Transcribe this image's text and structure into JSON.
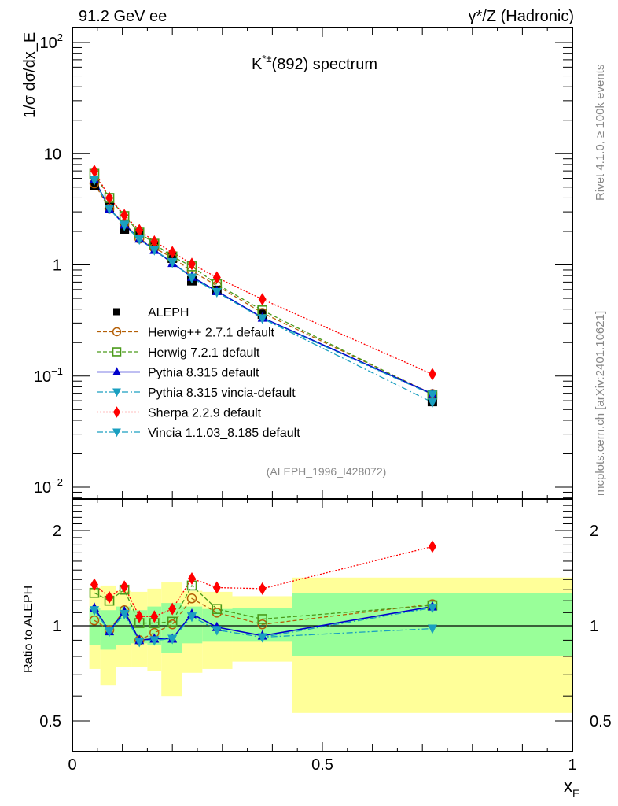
{
  "header": {
    "left": "91.2 GeV ee",
    "right": "γ*/Z (Hadronic)",
    "side_top": "Rivet 4.1.0, ≥ 100k events",
    "side_bottom": "mcplots.cern.ch [arXiv:2401.10621]",
    "analysis_id": "(ALEPH_1996_I428072)"
  },
  "chart_data": [
    {
      "type": "line",
      "panel": "main",
      "title": "K*±(892) spectrum",
      "title_base": "K",
      "title_sup": "*±",
      "title_rest": "(892) spectrum",
      "ylabel": "1/σ  dσ/dx_E",
      "yscale": "log",
      "ylim": [
        0.008,
        130
      ],
      "xlim": [
        0,
        1
      ],
      "yticks": [
        {
          "value": 100,
          "base": "10",
          "exp": "2"
        },
        {
          "value": 10,
          "base": "10",
          "exp": ""
        },
        {
          "value": 1,
          "base": "1",
          "exp": ""
        },
        {
          "value": 0.1,
          "base": "10",
          "exp": "−1"
        },
        {
          "value": 0.01,
          "base": "10",
          "exp": "−2"
        }
      ],
      "legend_position": "center-left",
      "x": [
        0.044,
        0.074,
        0.104,
        0.134,
        0.164,
        0.2,
        0.239,
        0.289,
        0.38,
        0.72
      ],
      "series": [
        {
          "name": "ALEPH",
          "color": "#000000",
          "marker": "square-filled",
          "line": "none",
          "values": [
            5.2,
            3.3,
            2.1,
            1.9,
            1.5,
            1.15,
            0.72,
            0.59,
            0.36,
            0.059
          ]
        },
        {
          "name": "Herwig++ 2.7.1 default",
          "color": "#b45f06",
          "marker": "circle-open",
          "line": "dashed",
          "values": [
            5.4,
            3.2,
            2.35,
            1.72,
            1.42,
            1.16,
            0.88,
            0.65,
            0.37,
            0.069
          ]
        },
        {
          "name": "Herwig 7.2.1 default",
          "color": "#4a9a1a",
          "marker": "square-open",
          "line": "dashed",
          "values": [
            6.6,
            4.0,
            2.75,
            1.95,
            1.55,
            1.19,
            0.97,
            0.67,
            0.39,
            0.068
          ]
        },
        {
          "name": "Pythia 8.315 default",
          "color": "#0000cc",
          "marker": "triangle-up",
          "line": "solid",
          "values": [
            5.9,
            3.2,
            2.3,
            1.72,
            1.36,
            1.04,
            0.78,
            0.58,
            0.335,
            0.069
          ]
        },
        {
          "name": "Pythia 8.315 vincia-default",
          "color": "#1a9fc0",
          "marker": "triangle-down",
          "line": "dashdot",
          "values": [
            5.8,
            3.2,
            2.25,
            1.7,
            1.36,
            1.06,
            0.76,
            0.57,
            0.33,
            0.058
          ]
        },
        {
          "name": "Sherpa 2.2.9 default",
          "color": "#ff0000",
          "marker": "diamond",
          "line": "dotted",
          "values": [
            7.0,
            4.0,
            2.8,
            2.05,
            1.62,
            1.3,
            1.02,
            0.77,
            0.49,
            0.104
          ]
        },
        {
          "name": "Vincia 1.1.03_8.185 default",
          "color": "#1a9fc0",
          "marker": "triangle-down",
          "line": "dashdot",
          "values": [
            5.8,
            3.2,
            2.3,
            1.7,
            1.36,
            1.05,
            0.77,
            0.57,
            0.33,
            0.068
          ]
        }
      ]
    },
    {
      "type": "line",
      "panel": "ratio",
      "ylabel": "Ratio to ALEPH",
      "xlabel": "x_E",
      "xlabel_base": "x",
      "xlabel_sub": "E",
      "yscale": "log",
      "ylim": [
        0.42,
        2.6
      ],
      "xlim": [
        0,
        1
      ],
      "yticks": [
        {
          "value": 2,
          "label": "2"
        },
        {
          "value": 1,
          "label": "1"
        },
        {
          "value": 0.5,
          "label": "0.5"
        }
      ],
      "xticks": [
        {
          "value": 0,
          "label": "0"
        },
        {
          "value": 0.5,
          "label": "0.5"
        },
        {
          "value": 1,
          "label": "1"
        }
      ],
      "reference_line": 1,
      "bands": {
        "bin_edges": [
          0.034,
          0.056,
          0.088,
          0.118,
          0.15,
          0.178,
          0.22,
          0.26,
          0.32,
          0.44,
          1.0
        ],
        "stat_color": "#99ff99",
        "total_color": "#ffff99",
        "stat": [
          [
            0.87,
            1.14
          ],
          [
            0.84,
            1.12
          ],
          [
            0.87,
            1.15
          ],
          [
            0.88,
            1.12
          ],
          [
            0.87,
            1.15
          ],
          [
            0.82,
            1.18
          ],
          [
            0.88,
            1.15
          ],
          [
            0.89,
            1.13
          ],
          [
            0.89,
            1.14
          ],
          [
            0.8,
            1.27
          ]
        ],
        "total": [
          [
            0.73,
            1.32
          ],
          [
            0.65,
            1.34
          ],
          [
            0.74,
            1.29
          ],
          [
            0.74,
            1.28
          ],
          [
            0.72,
            1.31
          ],
          [
            0.6,
            1.37
          ],
          [
            0.71,
            1.29
          ],
          [
            0.73,
            1.28
          ],
          [
            0.77,
            1.24
          ],
          [
            0.53,
            1.42
          ]
        ]
      },
      "x": [
        0.044,
        0.074,
        0.104,
        0.134,
        0.164,
        0.2,
        0.239,
        0.289,
        0.38,
        0.72
      ],
      "series": [
        {
          "name": "Herwig++ 2.7.1 default",
          "color": "#b45f06",
          "marker": "circle-open",
          "line": "dashed",
          "values": [
            1.04,
            0.97,
            1.12,
            0.9,
            0.95,
            1.01,
            1.22,
            1.1,
            1.01,
            1.17
          ]
        },
        {
          "name": "Herwig 7.2.1 default",
          "color": "#4a9a1a",
          "marker": "square-open",
          "line": "dashed",
          "values": [
            1.27,
            1.2,
            1.3,
            1.02,
            1.02,
            1.03,
            1.34,
            1.13,
            1.05,
            1.16
          ]
        },
        {
          "name": "Pythia 8.315 default",
          "color": "#0000cc",
          "marker": "triangle-up",
          "line": "solid",
          "values": [
            1.14,
            0.96,
            1.11,
            0.9,
            0.91,
            0.91,
            1.09,
            0.99,
            0.93,
            1.15
          ]
        },
        {
          "name": "Pythia 8.315 vincia-default",
          "color": "#1a9fc0",
          "marker": "triangle-down",
          "line": "dashdot",
          "values": [
            1.12,
            0.96,
            1.09,
            0.89,
            0.9,
            0.91,
            1.07,
            0.97,
            0.92,
            0.98
          ]
        },
        {
          "name": "Sherpa 2.2.9 default",
          "color": "#ff0000",
          "marker": "diamond",
          "line": "dotted",
          "values": [
            1.35,
            1.23,
            1.33,
            1.07,
            1.07,
            1.13,
            1.41,
            1.32,
            1.31,
            1.78
          ]
        },
        {
          "name": "Vincia 1.1.03_8.185 default",
          "color": "#1a9fc0",
          "marker": "triangle-down",
          "line": "dashdot",
          "values": [
            1.12,
            0.96,
            1.09,
            0.89,
            0.9,
            0.91,
            1.07,
            0.97,
            0.92,
            1.14
          ]
        }
      ]
    }
  ]
}
